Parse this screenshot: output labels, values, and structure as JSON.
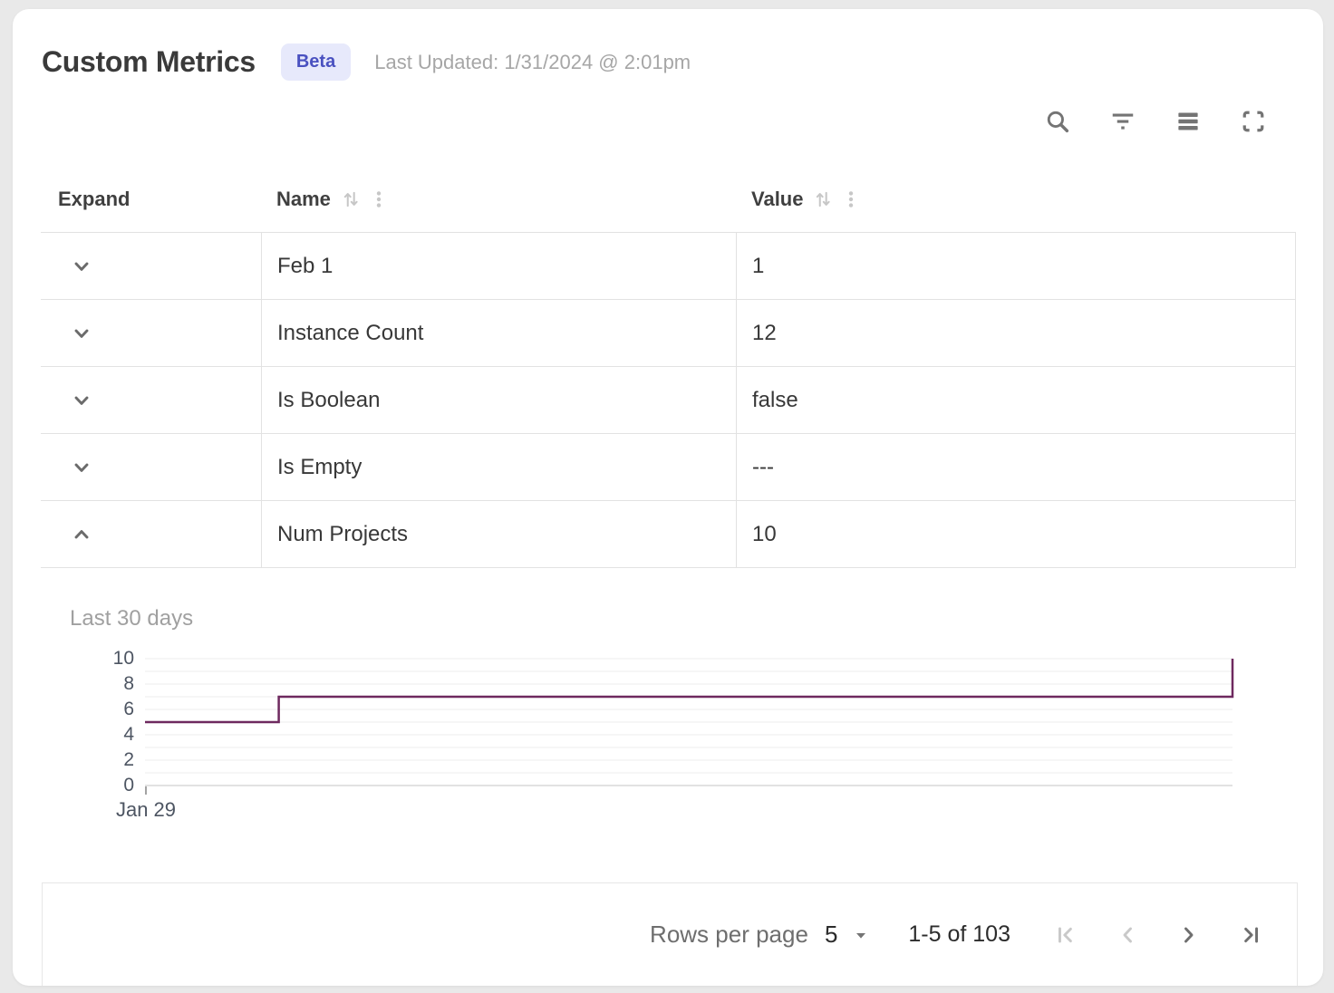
{
  "header": {
    "title": "Custom Metrics",
    "badge_label": "Beta",
    "last_updated": "Last Updated: 1/31/2024 @ 2:01pm"
  },
  "toolbar": {
    "icons": [
      "search-icon",
      "filter-icon",
      "density-icon",
      "fullscreen-icon"
    ]
  },
  "table": {
    "columns": [
      {
        "label": "Expand",
        "sortable": false
      },
      {
        "label": "Name",
        "sortable": true
      },
      {
        "label": "Value",
        "sortable": true
      }
    ],
    "rows": [
      {
        "name": "Feb 1",
        "value": "1",
        "expanded": false
      },
      {
        "name": "Instance Count",
        "value": "12",
        "expanded": false
      },
      {
        "name": "Is Boolean",
        "value": "false",
        "expanded": false
      },
      {
        "name": "Is Empty",
        "value": "---",
        "expanded": false
      },
      {
        "name": "Num Projects",
        "value": "10",
        "expanded": true
      }
    ]
  },
  "chart_data": {
    "type": "line",
    "subtype": "step-after",
    "title": "Last 30 days",
    "series": [
      {
        "name": "Num Projects",
        "points": [
          {
            "x": 0,
            "y": 5
          },
          {
            "x": 0.123,
            "y": 7
          },
          {
            "x": 1,
            "y": 10
          }
        ]
      }
    ],
    "x_tick_labels": [
      "Jan 29"
    ],
    "y_ticks": [
      0,
      2,
      4,
      6,
      8,
      10
    ],
    "ylim": [
      0,
      10
    ],
    "grid": "horizontal gridline every 1 unit",
    "legend": "none",
    "line_color": "#6e295f",
    "grid_color": "#f0f0f0",
    "baseline_color": "#e2e2e2"
  },
  "footer": {
    "rows_per_page_label": "Rows per page",
    "rows_per_page_value": "5",
    "range_label": "1-5 of 103",
    "pagination": [
      {
        "name": "first-page",
        "enabled": false
      },
      {
        "name": "previous-page",
        "enabled": false
      },
      {
        "name": "next-page",
        "enabled": true
      },
      {
        "name": "last-page",
        "enabled": true
      }
    ]
  }
}
